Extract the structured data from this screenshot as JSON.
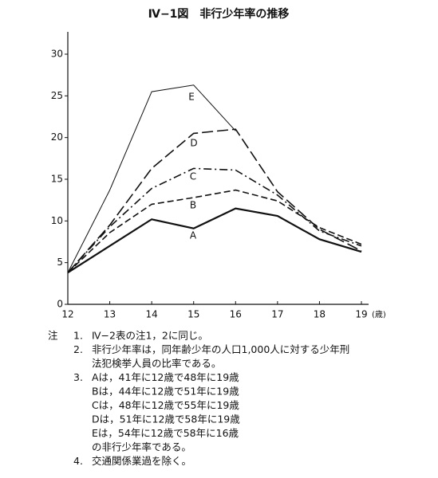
{
  "chart_data": {
    "type": "line",
    "title": "Ⅳ−1図　非行少年率の推移",
    "x_label": "(歳)",
    "x": [
      12,
      13,
      14,
      15,
      16,
      17,
      18,
      19
    ],
    "xlim": [
      12,
      19
    ],
    "xticks": [
      12,
      13,
      14,
      15,
      16,
      17,
      18,
      19
    ],
    "ylim": [
      0,
      30
    ],
    "yticks": [
      0,
      5,
      10,
      15,
      20,
      25,
      30
    ],
    "grid": false,
    "series": [
      {
        "name": "A",
        "color": "#111111",
        "style": "solid-thick",
        "values": [
          3.8,
          7.0,
          10.2,
          9.1,
          11.5,
          10.6,
          7.8,
          6.3
        ]
      },
      {
        "name": "B",
        "color": "#111111",
        "style": "dashed",
        "values": [
          3.8,
          8.6,
          12.0,
          12.8,
          13.7,
          12.4,
          9.2,
          7.2
        ]
      },
      {
        "name": "C",
        "color": "#111111",
        "style": "dash-dot",
        "values": [
          3.8,
          9.3,
          13.9,
          16.3,
          16.1,
          13.1,
          8.8,
          7.0
        ]
      },
      {
        "name": "D",
        "color": "#111111",
        "style": "long-dash",
        "values": [
          3.8,
          9.5,
          16.3,
          20.5,
          21.0,
          13.5,
          9.0,
          6.4
        ]
      },
      {
        "name": "E",
        "color": "#111111",
        "style": "solid-thin",
        "values": [
          3.8,
          13.7,
          25.5,
          26.3,
          20.8,
          null,
          null,
          null
        ]
      }
    ]
  },
  "notes": {
    "label": "注",
    "items": [
      {
        "number": "1.",
        "lines": [
          "Ⅳ−2表の注1，2に同じ。"
        ]
      },
      {
        "number": "2.",
        "lines": [
          "非行少年率は，同年齢少年の人口1,000人に対する少年刑",
          "法犯検挙人員の比率である。"
        ]
      },
      {
        "number": "3.",
        "lines": [
          "Aは，41年に12歳で48年に19歳",
          "Bは，44年に12歳で51年に19歳",
          "Cは，48年に12歳で55年に19歳",
          "Dは，51年に12歳で58年に19歳",
          "Eは，54年に12歳で58年に16歳",
          "の非行少年率である。"
        ]
      },
      {
        "number": "4.",
        "lines": [
          "交通関係業過を除く。"
        ]
      }
    ]
  }
}
